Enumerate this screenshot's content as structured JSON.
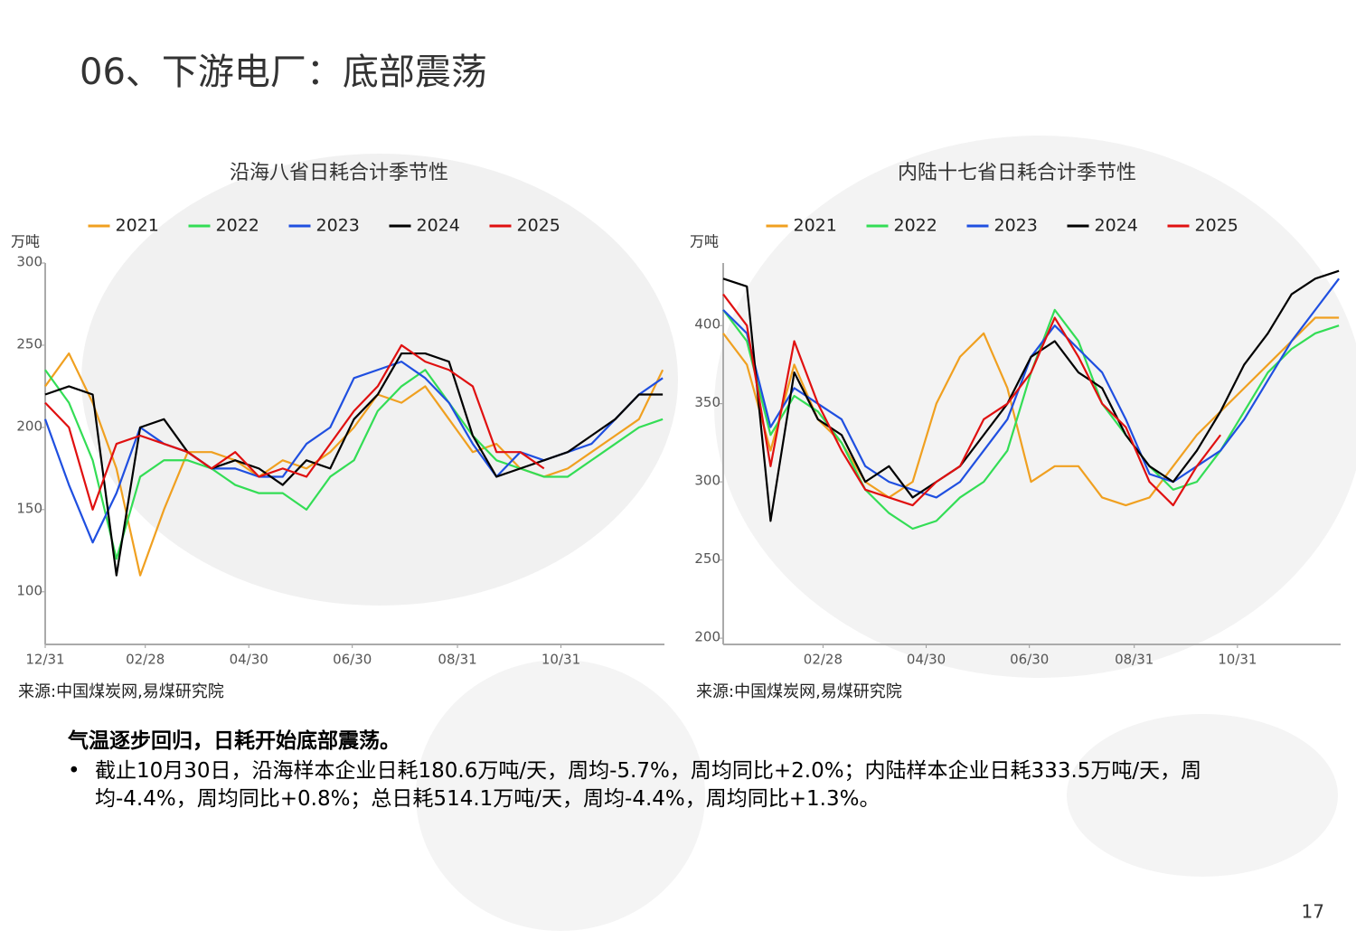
{
  "title": "06、下游电厂：底部震荡",
  "chart_data": [
    {
      "type": "line",
      "title": "沿海八省日耗合计季节性",
      "y_label": "万吨",
      "source": "来源:中国煤炭网,易煤研究院",
      "x": [
        0,
        14,
        28,
        42,
        56,
        70,
        84,
        98,
        112,
        126,
        140,
        154,
        168,
        182,
        196,
        210,
        224,
        238,
        252,
        266,
        280,
        294,
        308,
        322,
        336,
        350,
        364
      ],
      "xlim": [
        0,
        365
      ],
      "xticks": [
        {
          "value": 0,
          "label": "12/31"
        },
        {
          "value": 59,
          "label": "02/28"
        },
        {
          "value": 120,
          "label": "04/30"
        },
        {
          "value": 181,
          "label": "06/30"
        },
        {
          "value": 243,
          "label": "08/31"
        },
        {
          "value": 304,
          "label": "10/31"
        }
      ],
      "ylim": [
        68,
        300
      ],
      "yticks": [
        100,
        150,
        200,
        250,
        300
      ],
      "series": [
        {
          "name": "2021",
          "color": "#f0a020",
          "values": [
            225,
            245,
            215,
            175,
            110,
            150,
            185,
            185,
            180,
            170,
            180,
            175,
            185,
            200,
            220,
            215,
            225,
            205,
            185,
            190,
            175,
            170,
            175,
            185,
            195,
            205,
            235
          ]
        },
        {
          "name": "2022",
          "color": "#33dd55",
          "values": [
            235,
            215,
            180,
            120,
            170,
            180,
            180,
            175,
            165,
            160,
            160,
            150,
            170,
            180,
            210,
            225,
            235,
            215,
            195,
            180,
            175,
            170,
            170,
            180,
            190,
            200,
            205
          ]
        },
        {
          "name": "2023",
          "color": "#1f4fe0",
          "values": [
            205,
            165,
            130,
            160,
            200,
            190,
            185,
            175,
            175,
            170,
            170,
            190,
            200,
            230,
            235,
            240,
            230,
            215,
            190,
            170,
            185,
            180,
            185,
            190,
            205,
            220,
            230
          ]
        },
        {
          "name": "2024",
          "color": "#000000",
          "values": [
            220,
            225,
            220,
            110,
            200,
            205,
            185,
            175,
            180,
            175,
            165,
            180,
            175,
            205,
            220,
            245,
            245,
            240,
            195,
            170,
            175,
            180,
            185,
            195,
            205,
            220,
            220
          ]
        },
        {
          "name": "2025",
          "color": "#e01010",
          "values": [
            215,
            200,
            150,
            190,
            195,
            190,
            185,
            175,
            185,
            170,
            175,
            170,
            190,
            210,
            225,
            250,
            240,
            235,
            225,
            185,
            185,
            175,
            null,
            null,
            null,
            null,
            null
          ]
        }
      ]
    },
    {
      "type": "line",
      "title": "内陆十七省日耗合计季节性",
      "y_label": "万吨",
      "source": "来源:中国煤炭网,易煤研究院",
      "x": [
        0,
        14,
        28,
        42,
        56,
        70,
        84,
        98,
        112,
        126,
        140,
        154,
        168,
        182,
        196,
        210,
        224,
        238,
        252,
        266,
        280,
        294,
        308,
        322,
        336,
        350,
        364
      ],
      "xlim": [
        0,
        365
      ],
      "xticks": [
        {
          "value": 59,
          "label": "02/28"
        },
        {
          "value": 120,
          "label": "04/30"
        },
        {
          "value": 181,
          "label": "06/30"
        },
        {
          "value": 243,
          "label": "08/31"
        },
        {
          "value": 304,
          "label": "10/31"
        }
      ],
      "ylim": [
        196,
        440
      ],
      "yticks": [
        200,
        250,
        300,
        350,
        400
      ],
      "series": [
        {
          "name": "2021",
          "color": "#f0a020",
          "values": [
            395,
            375,
            320,
            375,
            340,
            325,
            300,
            290,
            300,
            350,
            380,
            395,
            360,
            300,
            310,
            310,
            290,
            285,
            290,
            310,
            330,
            345,
            360,
            375,
            390,
            405,
            405
          ]
        },
        {
          "name": "2022",
          "color": "#33dd55",
          "values": [
            410,
            390,
            330,
            355,
            345,
            325,
            295,
            280,
            270,
            275,
            290,
            300,
            320,
            370,
            410,
            390,
            350,
            330,
            310,
            295,
            300,
            320,
            345,
            370,
            385,
            395,
            400
          ]
        },
        {
          "name": "2023",
          "color": "#1f4fe0",
          "values": [
            410,
            395,
            335,
            360,
            350,
            340,
            310,
            300,
            295,
            290,
            300,
            320,
            340,
            380,
            400,
            385,
            370,
            340,
            305,
            300,
            310,
            320,
            340,
            365,
            390,
            410,
            430
          ]
        },
        {
          "name": "2024",
          "color": "#000000",
          "values": [
            430,
            425,
            275,
            370,
            340,
            330,
            300,
            310,
            290,
            300,
            310,
            330,
            350,
            380,
            390,
            370,
            360,
            330,
            310,
            300,
            320,
            345,
            375,
            395,
            420,
            430,
            435
          ]
        },
        {
          "name": "2025",
          "color": "#e01010",
          "values": [
            420,
            400,
            310,
            390,
            350,
            320,
            295,
            290,
            285,
            300,
            310,
            340,
            350,
            370,
            405,
            380,
            350,
            335,
            300,
            285,
            310,
            330,
            null,
            null,
            null,
            null,
            null
          ]
        }
      ]
    }
  ],
  "summary": {
    "heading": "气温逐步回归，日耗开始底部震荡。",
    "bullet": "截止10月30日，沿海样本企业日耗180.6万吨/天，周均-5.7%，周均同比+2.0%；内陆样本企业日耗333.5万吨/天，周均-4.4%，周均同比+0.8%；总日耗514.1万吨/天，周均-4.4%，周均同比+1.3%。"
  },
  "page_number": 17
}
